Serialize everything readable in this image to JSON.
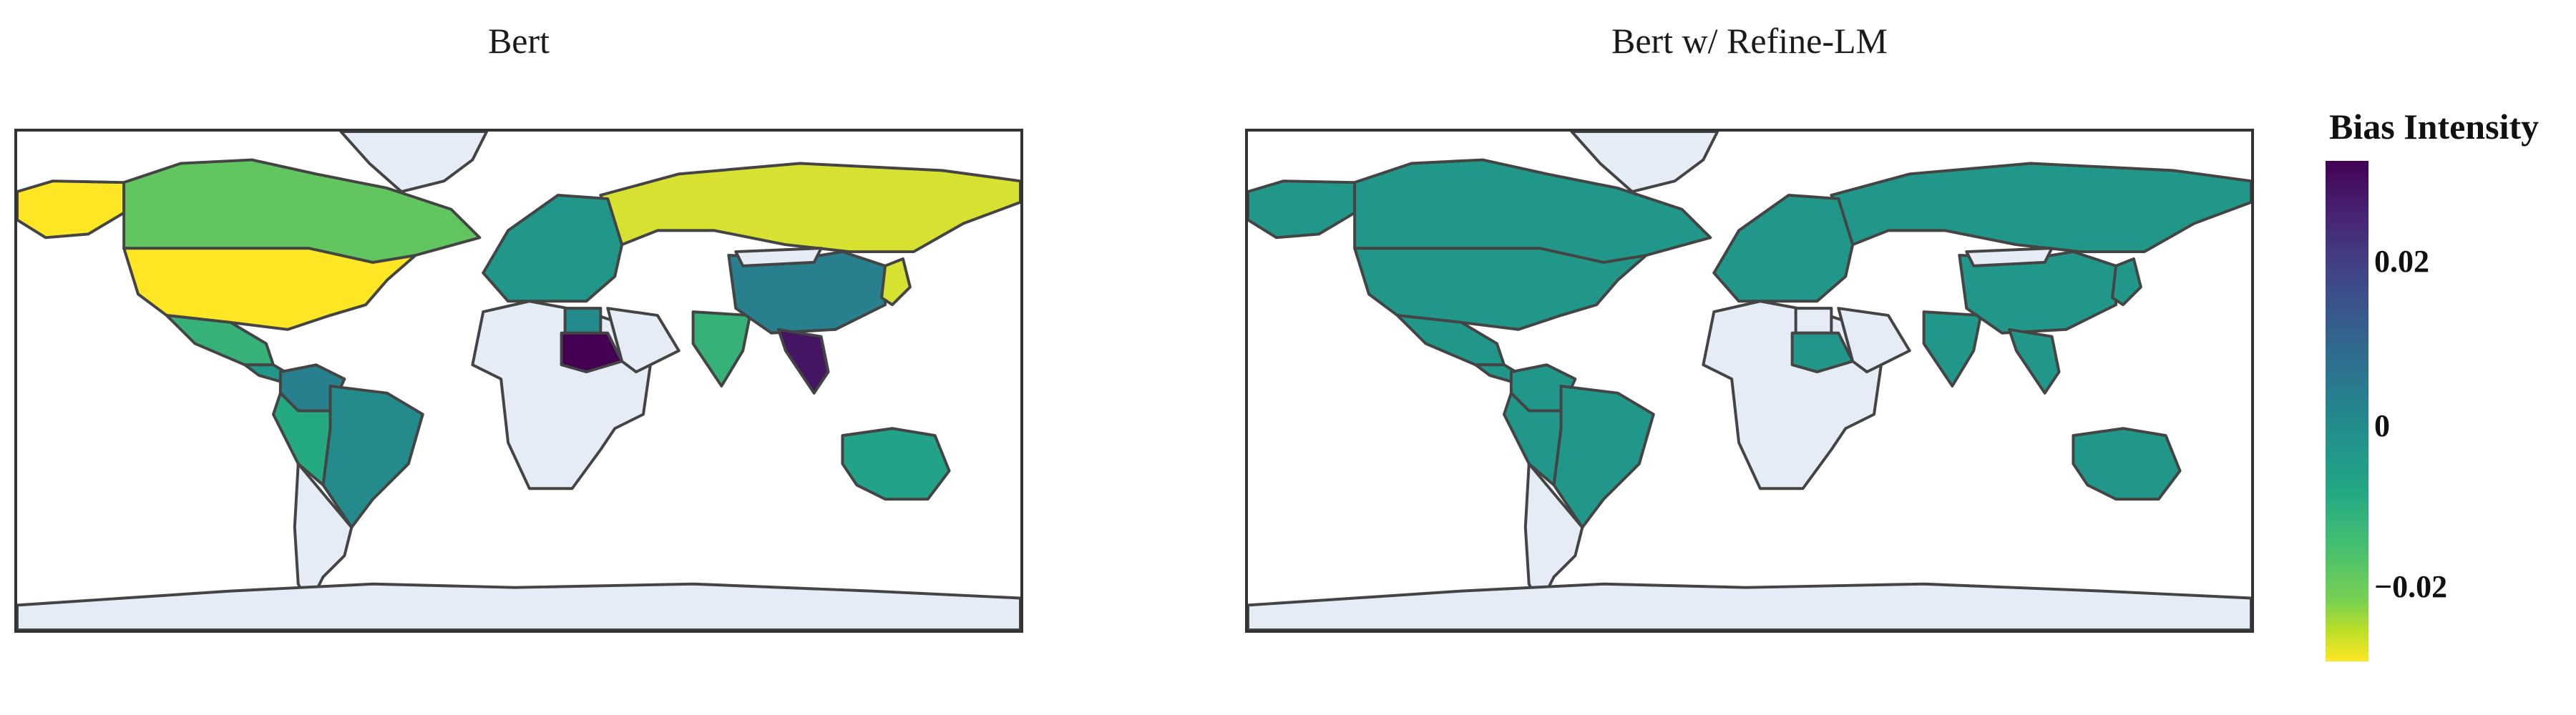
{
  "panels": [
    {
      "title": "Bert"
    },
    {
      "title": "Bert w/ Refine-LM"
    }
  ],
  "colorbar": {
    "title": "Bias Intensity",
    "ticks": [
      "0.02",
      "0",
      "−0.02"
    ],
    "range": [
      -0.028,
      0.033
    ]
  },
  "colors": {
    "land_nodata": "#e5ecf6",
    "border": "#444444",
    "scale": [
      "#440154",
      "#414487",
      "#2a788e",
      "#21918c",
      "#22a884",
      "#7ad151",
      "#fde725"
    ]
  },
  "chart_data": [
    {
      "type": "choropleth",
      "title": "Bert",
      "colorbar_title": "Bias Intensity",
      "regions": [
        {
          "name": "United States",
          "value": -0.03
        },
        {
          "name": "Alaska",
          "value": -0.03
        },
        {
          "name": "Canada",
          "value": -0.015
        },
        {
          "name": "Greenland",
          "value": null
        },
        {
          "name": "Mexico",
          "value": -0.01
        },
        {
          "name": "Central America",
          "value": 0.0
        },
        {
          "name": "Colombia/Venezuela",
          "value": 0.01
        },
        {
          "name": "Brazil",
          "value": 0.005
        },
        {
          "name": "South America West",
          "value": -0.008
        },
        {
          "name": "Argentina/Chile",
          "value": null
        },
        {
          "name": "Russia",
          "value": -0.025
        },
        {
          "name": "Europe",
          "value": 0.0
        },
        {
          "name": "Africa",
          "value": null
        },
        {
          "name": "Egypt",
          "value": 0.005
        },
        {
          "name": "Sudan",
          "value": 0.035
        },
        {
          "name": "Arabia",
          "value": null
        },
        {
          "name": "India",
          "value": -0.01
        },
        {
          "name": "China",
          "value": 0.01
        },
        {
          "name": "Mongolia",
          "value": null
        },
        {
          "name": "Southeast Asia",
          "value": 0.03
        },
        {
          "name": "Japan",
          "value": -0.025
        },
        {
          "name": "Australia",
          "value": -0.005
        },
        {
          "name": "Antarctica",
          "value": null
        }
      ]
    },
    {
      "type": "choropleth",
      "title": "Bert w/ Refine-LM",
      "colorbar_title": "Bias Intensity",
      "regions": [
        {
          "name": "United States",
          "value": 0.0
        },
        {
          "name": "Alaska",
          "value": 0.0
        },
        {
          "name": "Canada",
          "value": 0.0
        },
        {
          "name": "Greenland",
          "value": null
        },
        {
          "name": "Mexico",
          "value": 0.0
        },
        {
          "name": "Central America",
          "value": 0.0
        },
        {
          "name": "Colombia/Venezuela",
          "value": 0.0
        },
        {
          "name": "Brazil",
          "value": 0.0
        },
        {
          "name": "South America West",
          "value": 0.0
        },
        {
          "name": "Argentina/Chile",
          "value": null
        },
        {
          "name": "Russia",
          "value": 0.0
        },
        {
          "name": "Europe",
          "value": 0.0
        },
        {
          "name": "Africa",
          "value": null
        },
        {
          "name": "Egypt",
          "value": null
        },
        {
          "name": "Sudan",
          "value": 0.0
        },
        {
          "name": "Arabia",
          "value": null
        },
        {
          "name": "India",
          "value": 0.0
        },
        {
          "name": "China",
          "value": 0.0
        },
        {
          "name": "Mongolia",
          "value": null
        },
        {
          "name": "Southeast Asia",
          "value": 0.0
        },
        {
          "name": "Japan",
          "value": 0.0
        },
        {
          "name": "Australia",
          "value": 0.0
        },
        {
          "name": "Antarctica",
          "value": null
        }
      ]
    }
  ]
}
